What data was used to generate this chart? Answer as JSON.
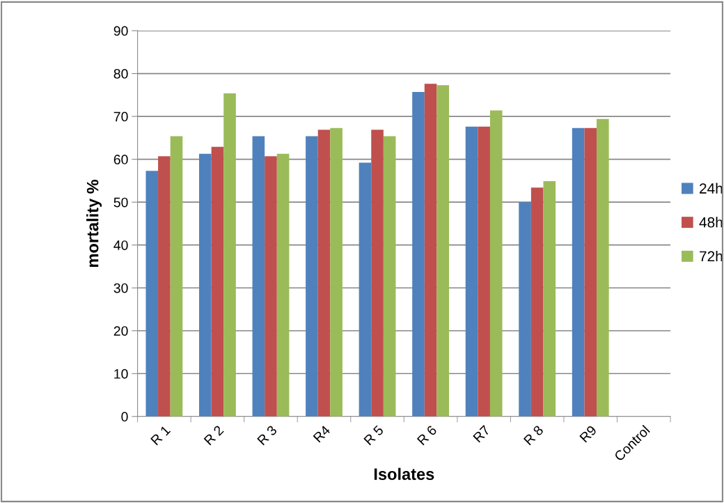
{
  "chart_data": {
    "type": "bar",
    "xlabel": "Isolates",
    "ylabel": "mortality %",
    "categories": [
      "R 1",
      "R 2",
      "R 3",
      "R4",
      "R 5",
      "R 6",
      "R7",
      "R 8",
      "R9",
      "Control"
    ],
    "series": [
      {
        "name": "24h",
        "color": "#4f81bd",
        "values": [
          57.3,
          61.3,
          65.4,
          65.4,
          59.2,
          75.7,
          67.6,
          50,
          67.3,
          null
        ]
      },
      {
        "name": "48h",
        "color": "#c0504d",
        "values": [
          60.7,
          62.9,
          60.7,
          66.9,
          66.9,
          77.6,
          67.6,
          53.4,
          67.3,
          null
        ]
      },
      {
        "name": "72h",
        "color": "#9bbb59",
        "values": [
          65.4,
          75.4,
          61.3,
          67.3,
          65.4,
          77.3,
          71.4,
          54.9,
          69.4,
          null
        ]
      }
    ],
    "ylim": [
      0,
      90
    ],
    "yticks": [
      0,
      10,
      20,
      30,
      40,
      50,
      60,
      70,
      80,
      90
    ],
    "grid": "y",
    "legend": "right"
  }
}
